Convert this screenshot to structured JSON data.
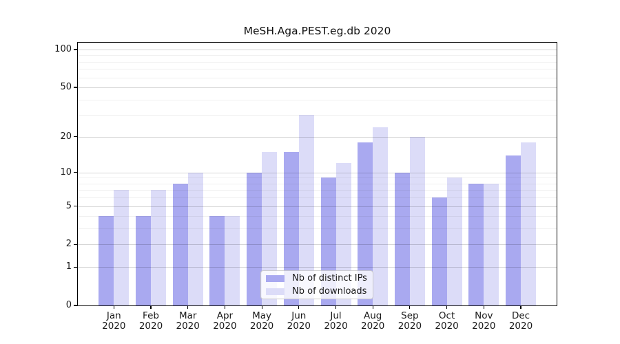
{
  "chart_data": {
    "type": "bar",
    "title": "MeSH.Aga.PEST.eg.db 2020",
    "categories": [
      "Jan",
      "Feb",
      "Mar",
      "Apr",
      "May",
      "Jun",
      "Jul",
      "Aug",
      "Sep",
      "Oct",
      "Nov",
      "Dec"
    ],
    "category_year": "2020",
    "series": [
      {
        "name": "Nb of distinct IPs",
        "color": "#a9a9f0",
        "values": [
          4,
          4,
          8,
          4,
          10,
          15,
          9,
          18,
          10,
          6,
          8,
          14
        ]
      },
      {
        "name": "Nb of downloads",
        "color": "#dcdcf8",
        "values": [
          7,
          7,
          10,
          4,
          15,
          30,
          12,
          24,
          20,
          9,
          8,
          18
        ]
      }
    ],
    "yscale": "log1p",
    "ylim": [
      0,
      100
    ],
    "yticks": [
      0,
      1,
      2,
      5,
      10,
      20,
      50,
      100
    ],
    "minor_gridlines": [
      3,
      4,
      6,
      7,
      8,
      9,
      30,
      40,
      60,
      70,
      80,
      90
    ],
    "grid": true,
    "xlabel": "",
    "ylabel": "",
    "legend_position": "inside-bottom-center"
  }
}
